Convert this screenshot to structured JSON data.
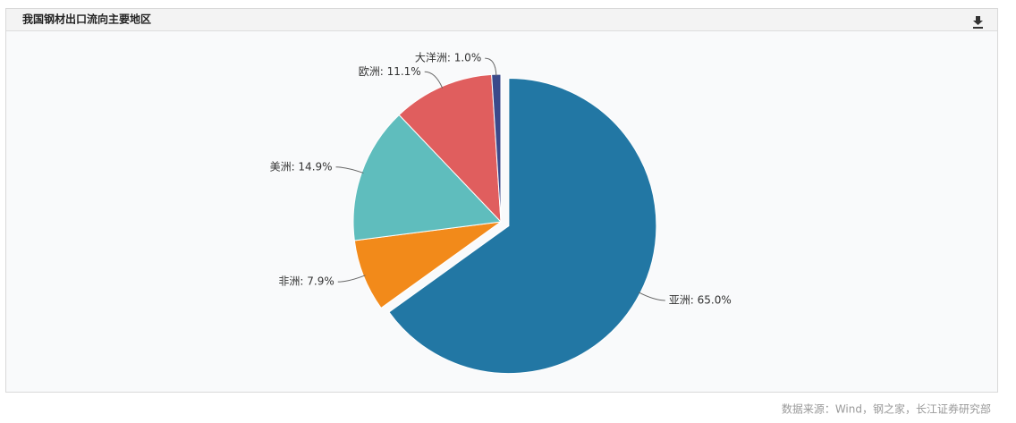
{
  "chart_data": {
    "type": "pie",
    "title": "我国钢材出口流向主要地区",
    "values": [
      65.0,
      7.9,
      14.9,
      11.1,
      1.0
    ],
    "value_labels": [
      "亚洲: 65.0%",
      "非洲: 7.9%",
      "美洲: 14.9%",
      "欧洲: 11.1%",
      "大洋洲: 1.0%"
    ],
    "colors": [
      "#2277a4",
      "#f28a1a",
      "#5fbdbd",
      "#e05e5e",
      "#3b4a8a"
    ],
    "exploded": [
      true,
      false,
      false,
      false,
      false
    ]
  },
  "source": "数据来源：Wind，钢之家，长江证券研究部"
}
